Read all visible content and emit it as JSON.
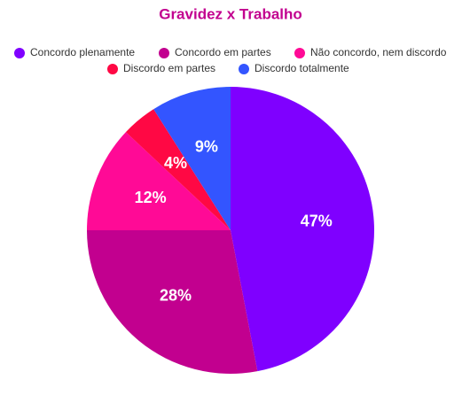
{
  "chart_data": {
    "type": "pie",
    "title": "Gravidez x Trabalho",
    "categories": [
      "Concordo plenamente",
      "Concordo em partes",
      "Não concordo, nem discordo",
      "Discordo em partes",
      "Discordo totalmente"
    ],
    "values": [
      47,
      28,
      12,
      4,
      9
    ],
    "value_labels": [
      "47%",
      "28%",
      "12%",
      "4%",
      "9%"
    ],
    "colors": [
      "#7f00ff",
      "#c2008f",
      "#ff0a96",
      "#ff0844",
      "#3355ff"
    ],
    "legend": "top"
  }
}
